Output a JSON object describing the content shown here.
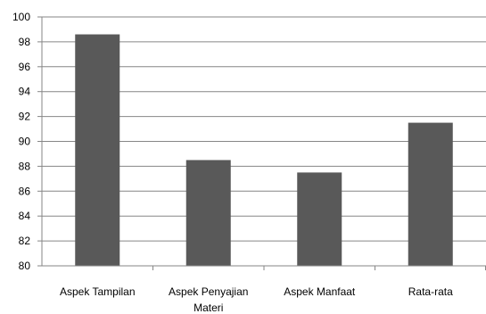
{
  "chart_data": {
    "type": "bar",
    "categories": [
      "Aspek Tampilan",
      "Aspek Penyajian Materi",
      "Aspek Manfaat",
      "Rata-rata"
    ],
    "category_lines": [
      [
        "Aspek Tampilan"
      ],
      [
        "Aspek Penyajian",
        "Materi"
      ],
      [
        "Aspek Manfaat"
      ],
      [
        "Rata-rata"
      ]
    ],
    "values": [
      98.6,
      88.5,
      87.5,
      91.5
    ],
    "ylim": [
      80,
      100
    ],
    "yticks": [
      "80",
      "82",
      "84",
      "86",
      "88",
      "90",
      "92",
      "94",
      "96",
      "98",
      "100"
    ],
    "title": "",
    "xlabel": "",
    "ylabel": "",
    "grid": true,
    "legend": "none",
    "bar_color": "#595959",
    "grid_color": "#868686",
    "axis_color": "#868686"
  }
}
